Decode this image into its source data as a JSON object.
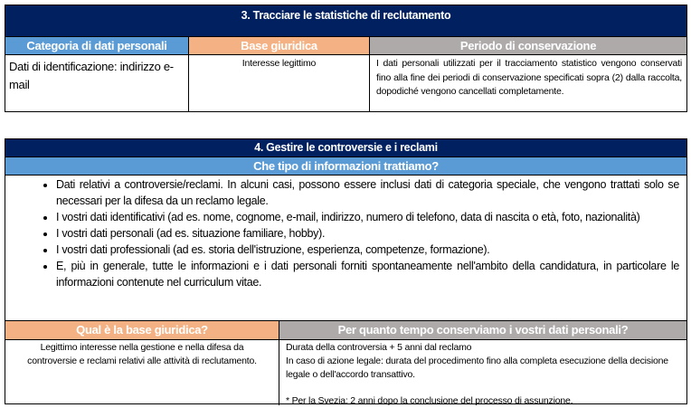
{
  "section3": {
    "title": "3. Tracciare le statistiche di reclutamento",
    "headers": [
      "Categoria di dati personali",
      "Base giuridica",
      "Periodo di conservazione"
    ],
    "cells": [
      "Dati di identificazione: indirizzo e-mail",
      "Interesse legittimo",
      "I dati personali utilizzati per il tracciamento statistico vengono conservati fino alla fine dei periodi di conservazione specificati sopra (2) dalla raccolta, dopodiché vengono cancellati completamente."
    ]
  },
  "section4": {
    "title": "4. Gestire le controversie e i reclami",
    "subtitle": "Che tipo di informazioni trattiamo?",
    "bullets": [
      "Dati relativi a controversie/reclami. In alcuni casi, possono essere inclusi dati di categoria speciale, che vengono trattati solo se necessari per la difesa da un reclamo legale.",
      "I vostri dati identificativi (ad es. nome, cognome, e-mail, indirizzo, numero di telefono, data di nascita o età, foto, nazionalità)",
      "I vostri dati personali (ad es. situazione familiare, hobby).",
      "I vostri dati professionali (ad es. storia dell'istruzione, esperienza, competenze, formazione).",
      "E, più in generale, tutte le informazioni e i dati personali forniti spontaneamente nell'ambito della candidatura, in particolare le informazioni contenute nel curriculum vitae."
    ],
    "headers": [
      "Qual è la base giuridica?",
      "Per quanto tempo conserviamo i vostri dati personali?"
    ],
    "legal_basis": "Legittimo interesse nella gestione e nella difesa da controversie e reclami relativi alle attività di reclutamento.",
    "retention": [
      "Durata della controversia + 5 anni dal reclamo",
      "In caso di azione legale: durata del procedimento fino alla completa esecuzione della decisione legale o dell'accordo transattivo.",
      "* Per la Svezia: 2 anni dopo la conclusione del processo di assunzione."
    ]
  },
  "colors": {
    "title_bg": "#002060",
    "blue": "#5B9BD5",
    "orange": "#F4B183",
    "gray": "#AEAAAA"
  }
}
